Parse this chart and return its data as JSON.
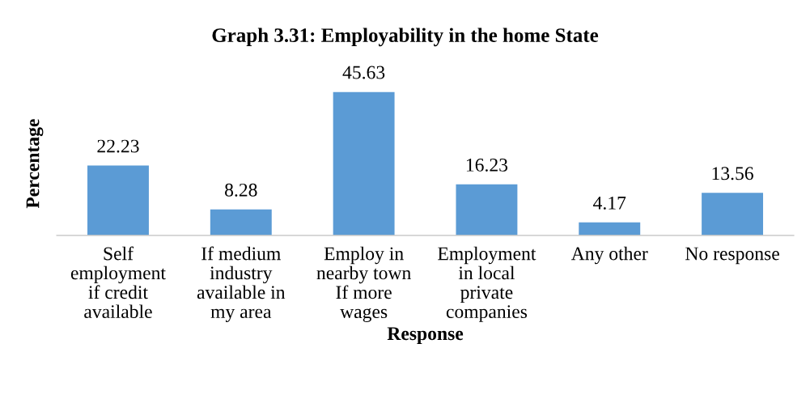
{
  "chart_data": {
    "type": "bar",
    "title": "Graph 3.31: Employability in the home State",
    "xlabel": "Response",
    "ylabel": "Percentage",
    "categories": [
      "Self\nemployment\nif credit\navailable",
      "If medium\nindustry\navailable in\nmy area",
      "Employ in\nnearby town\nIf more\nwages",
      "Employment\nin local\nprivate\ncompanies",
      "Any other",
      "No response"
    ],
    "values": [
      22.23,
      8.28,
      45.63,
      16.23,
      4.17,
      13.56
    ],
    "color": "#5b9bd5",
    "data_labels": true,
    "grid": false,
    "legend": false,
    "tick_labels": "x"
  }
}
